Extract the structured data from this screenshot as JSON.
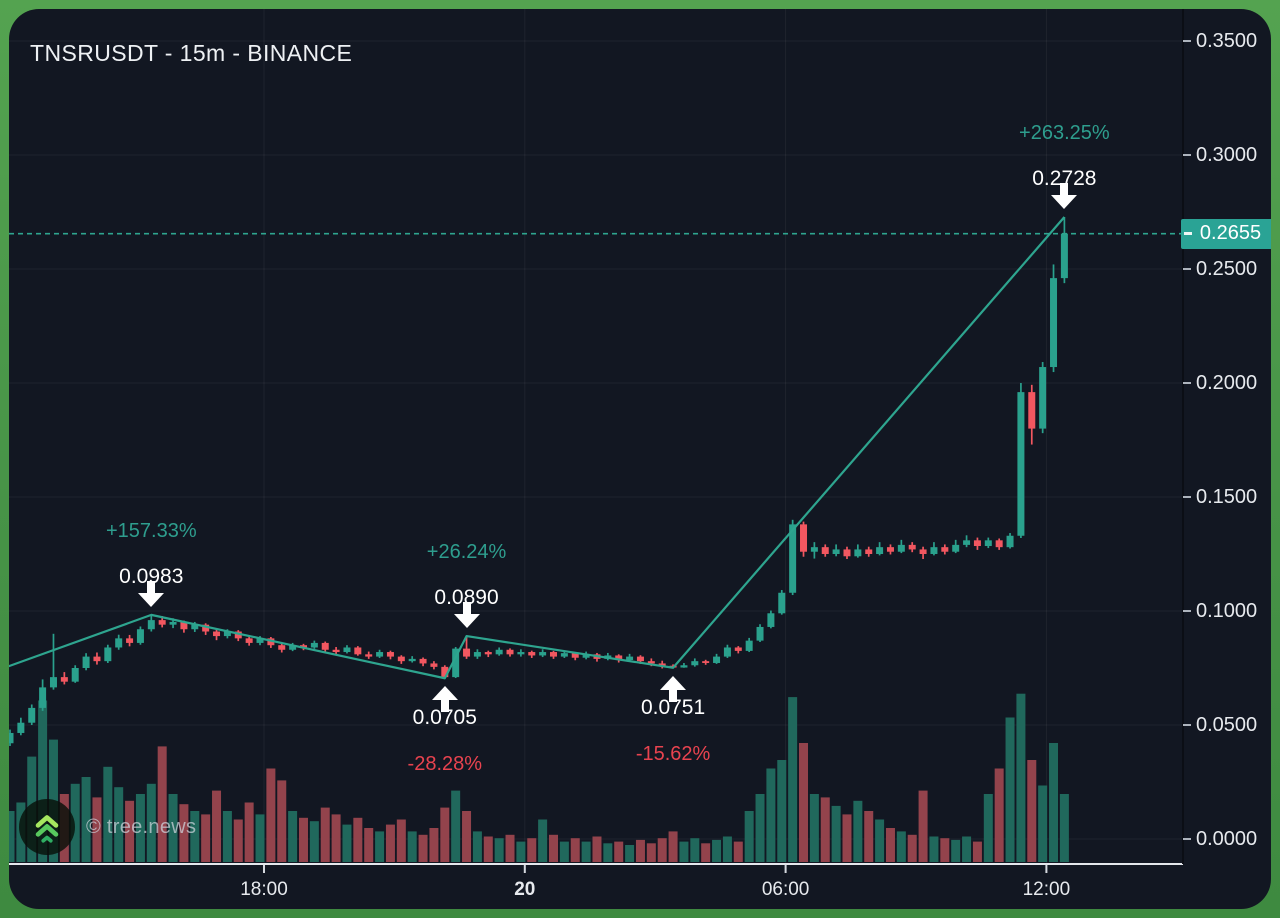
{
  "header": {
    "title": "TNSRUSDT - 15m - BINANCE"
  },
  "watermark": {
    "label": "© tree.news",
    "icon": "triple-chevron-up-icon"
  },
  "price_axis": {
    "tick_labels": [
      "0.3500",
      "0.3000",
      "0.2500",
      "0.2000",
      "0.1500",
      "0.1000",
      "0.0500",
      "0.0000"
    ],
    "current_label": "0.2655"
  },
  "time_axis": {
    "tick_labels": [
      {
        "text": "18:00",
        "emphasis": false
      },
      {
        "text": "20",
        "emphasis": true
      },
      {
        "text": "06:00",
        "emphasis": false
      },
      {
        "text": "12:00",
        "emphasis": false
      }
    ]
  },
  "colors": {
    "panel_bg": "#121722",
    "frame_green": "#479347",
    "up": "#2aa18d",
    "down": "#f25760",
    "vol_up": "#20685c",
    "vol_down": "#93434c",
    "trend_line": "#2ea58f",
    "price_tag_bg": "#2aa395",
    "pct_up_text": "#2e9e8e",
    "pct_down_text": "#e8434f",
    "axis_text": "#e7eaee",
    "grid": "rgba(255,255,255,0.055)"
  },
  "chart_data": {
    "type": "candlestick",
    "title": "TNSRUSDT - 15m - BINANCE",
    "symbol": "TNSRUSDT",
    "interval": "15m",
    "exchange": "BINANCE",
    "current_price": 0.2655,
    "price_range": [
      0.0,
      0.35
    ],
    "price_tick_step": 0.05,
    "grid": true,
    "x_tick_labels": [
      "18:00",
      "20",
      "06:00",
      "12:00"
    ],
    "zigzag_pivots": [
      {
        "index": -22,
        "price": 0.0382,
        "visible": false
      },
      {
        "index": 13,
        "price": 0.0983,
        "price_label": "0.0983",
        "change_label": "+157.33%",
        "direction": "peak"
      },
      {
        "index": 40,
        "price": 0.0705,
        "price_label": "0.0705",
        "change_label": "-28.28%",
        "direction": "trough"
      },
      {
        "index": 42,
        "price": 0.089,
        "price_label": "0.0890",
        "change_label": "+26.24%",
        "direction": "peak"
      },
      {
        "index": 61,
        "price": 0.0751,
        "price_label": "0.0751",
        "change_label": "-15.62%",
        "direction": "trough"
      },
      {
        "index": 97,
        "price": 0.2728,
        "price_label": "0.2728",
        "change_label": "+263.25%",
        "direction": "peak"
      }
    ],
    "candles": [
      [
        0.042,
        0.048,
        0.0408,
        0.0465,
        30
      ],
      [
        0.0465,
        0.0532,
        0.0455,
        0.051,
        35
      ],
      [
        0.051,
        0.059,
        0.05,
        0.0575,
        62
      ],
      [
        0.0575,
        0.07,
        0.0562,
        0.0665,
        95
      ],
      [
        0.0665,
        0.09,
        0.0655,
        0.071,
        72
      ],
      [
        0.071,
        0.0732,
        0.0678,
        0.069,
        40
      ],
      [
        0.069,
        0.0762,
        0.0685,
        0.075,
        46
      ],
      [
        0.075,
        0.0815,
        0.074,
        0.08,
        50
      ],
      [
        0.08,
        0.0818,
        0.0765,
        0.078,
        38
      ],
      [
        0.078,
        0.0852,
        0.0772,
        0.084,
        56
      ],
      [
        0.084,
        0.0896,
        0.083,
        0.088,
        44
      ],
      [
        0.088,
        0.0895,
        0.0845,
        0.086,
        36
      ],
      [
        0.086,
        0.0932,
        0.0852,
        0.092,
        40
      ],
      [
        0.092,
        0.0983,
        0.091,
        0.096,
        46
      ],
      [
        0.096,
        0.0978,
        0.0928,
        0.094,
        68
      ],
      [
        0.094,
        0.0968,
        0.0925,
        0.0952,
        40
      ],
      [
        0.0952,
        0.0958,
        0.0905,
        0.092,
        34
      ],
      [
        0.092,
        0.0952,
        0.0908,
        0.094,
        30
      ],
      [
        0.094,
        0.0946,
        0.0895,
        0.091,
        28
      ],
      [
        0.091,
        0.0922,
        0.0872,
        0.089,
        42
      ],
      [
        0.089,
        0.092,
        0.088,
        0.091,
        30
      ],
      [
        0.091,
        0.0916,
        0.0868,
        0.088,
        25
      ],
      [
        0.088,
        0.0892,
        0.0848,
        0.086,
        35
      ],
      [
        0.086,
        0.089,
        0.085,
        0.088,
        28
      ],
      [
        0.088,
        0.0886,
        0.0838,
        0.085,
        55
      ],
      [
        0.085,
        0.0862,
        0.0818,
        0.083,
        48
      ],
      [
        0.083,
        0.086,
        0.0824,
        0.085,
        30
      ],
      [
        0.085,
        0.0856,
        0.0828,
        0.084,
        26
      ],
      [
        0.084,
        0.087,
        0.0834,
        0.086,
        24
      ],
      [
        0.086,
        0.0866,
        0.0818,
        0.083,
        32
      ],
      [
        0.083,
        0.0842,
        0.0808,
        0.082,
        28
      ],
      [
        0.082,
        0.085,
        0.0814,
        0.084,
        22
      ],
      [
        0.084,
        0.0846,
        0.0804,
        0.081,
        26
      ],
      [
        0.081,
        0.0822,
        0.079,
        0.08,
        20
      ],
      [
        0.08,
        0.083,
        0.0794,
        0.082,
        18
      ],
      [
        0.082,
        0.0826,
        0.0788,
        0.08,
        22
      ],
      [
        0.08,
        0.0806,
        0.0768,
        0.078,
        25
      ],
      [
        0.078,
        0.0802,
        0.0774,
        0.079,
        18
      ],
      [
        0.079,
        0.0796,
        0.0758,
        0.077,
        16
      ],
      [
        0.077,
        0.078,
        0.0744,
        0.0755,
        20
      ],
      [
        0.0755,
        0.0762,
        0.0705,
        0.071,
        32
      ],
      [
        0.071,
        0.0842,
        0.0706,
        0.0835,
        42
      ],
      [
        0.0835,
        0.089,
        0.079,
        0.08,
        30
      ],
      [
        0.08,
        0.0832,
        0.079,
        0.082,
        18
      ],
      [
        0.082,
        0.0826,
        0.0798,
        0.081,
        15
      ],
      [
        0.081,
        0.084,
        0.0804,
        0.083,
        14
      ],
      [
        0.083,
        0.0836,
        0.08,
        0.081,
        16
      ],
      [
        0.081,
        0.0832,
        0.08,
        0.082,
        12
      ],
      [
        0.082,
        0.0826,
        0.0794,
        0.0805,
        14
      ],
      [
        0.0805,
        0.0832,
        0.0798,
        0.082,
        25
      ],
      [
        0.082,
        0.0825,
        0.079,
        0.08,
        16
      ],
      [
        0.08,
        0.0826,
        0.0794,
        0.0815,
        12
      ],
      [
        0.0815,
        0.082,
        0.0784,
        0.0795,
        14
      ],
      [
        0.0795,
        0.0822,
        0.0788,
        0.081,
        12
      ],
      [
        0.081,
        0.0816,
        0.0778,
        0.079,
        15
      ],
      [
        0.079,
        0.0816,
        0.0784,
        0.0805,
        11
      ],
      [
        0.0805,
        0.081,
        0.0774,
        0.0785,
        12
      ],
      [
        0.0785,
        0.0812,
        0.078,
        0.08,
        10
      ],
      [
        0.08,
        0.0806,
        0.0768,
        0.078,
        13
      ],
      [
        0.078,
        0.0792,
        0.0758,
        0.077,
        11
      ],
      [
        0.077,
        0.0782,
        0.0748,
        0.076,
        14
      ],
      [
        0.076,
        0.0766,
        0.0751,
        0.0752,
        18
      ],
      [
        0.0752,
        0.0772,
        0.0751,
        0.0762,
        12
      ],
      [
        0.0762,
        0.0792,
        0.0756,
        0.078,
        14
      ],
      [
        0.078,
        0.0786,
        0.0764,
        0.0772,
        11
      ],
      [
        0.0772,
        0.0812,
        0.0768,
        0.08,
        13
      ],
      [
        0.08,
        0.0852,
        0.0794,
        0.084,
        15
      ],
      [
        0.084,
        0.0846,
        0.0814,
        0.0825,
        12
      ],
      [
        0.0825,
        0.0882,
        0.082,
        0.087,
        30
      ],
      [
        0.087,
        0.0942,
        0.0864,
        0.093,
        40
      ],
      [
        0.093,
        0.1002,
        0.0924,
        0.099,
        55
      ],
      [
        0.099,
        0.1092,
        0.0984,
        0.108,
        60
      ],
      [
        0.108,
        0.14,
        0.107,
        0.138,
        97
      ],
      [
        0.138,
        0.1392,
        0.1238,
        0.126,
        70
      ],
      [
        0.126,
        0.1302,
        0.123,
        0.128,
        40
      ],
      [
        0.128,
        0.1292,
        0.1238,
        0.125,
        38
      ],
      [
        0.125,
        0.1292,
        0.124,
        0.127,
        33
      ],
      [
        0.127,
        0.1282,
        0.1228,
        0.124,
        28
      ],
      [
        0.124,
        0.1292,
        0.1234,
        0.127,
        36
      ],
      [
        0.127,
        0.1282,
        0.1238,
        0.125,
        30
      ],
      [
        0.125,
        0.1302,
        0.1244,
        0.128,
        25
      ],
      [
        0.128,
        0.1292,
        0.1248,
        0.126,
        20
      ],
      [
        0.126,
        0.1312,
        0.1254,
        0.129,
        18
      ],
      [
        0.129,
        0.1302,
        0.1258,
        0.127,
        16
      ],
      [
        0.127,
        0.1282,
        0.1228,
        0.125,
        42
      ],
      [
        0.125,
        0.1302,
        0.1244,
        0.128,
        15
      ],
      [
        0.128,
        0.1292,
        0.1248,
        0.126,
        14
      ],
      [
        0.126,
        0.1312,
        0.1254,
        0.129,
        13
      ],
      [
        0.129,
        0.1332,
        0.128,
        0.131,
        15
      ],
      [
        0.131,
        0.1322,
        0.1268,
        0.1285,
        12
      ],
      [
        0.1285,
        0.1322,
        0.1276,
        0.131,
        40
      ],
      [
        0.131,
        0.1318,
        0.1268,
        0.128,
        55
      ],
      [
        0.128,
        0.1342,
        0.1274,
        0.133,
        85
      ],
      [
        0.133,
        0.2,
        0.132,
        0.196,
        99
      ],
      [
        0.196,
        0.1992,
        0.173,
        0.18,
        60
      ],
      [
        0.18,
        0.2092,
        0.178,
        0.207,
        45
      ],
      [
        0.207,
        0.252,
        0.2048,
        0.246,
        70
      ],
      [
        0.246,
        0.2728,
        0.2438,
        0.2655,
        40
      ]
    ]
  }
}
